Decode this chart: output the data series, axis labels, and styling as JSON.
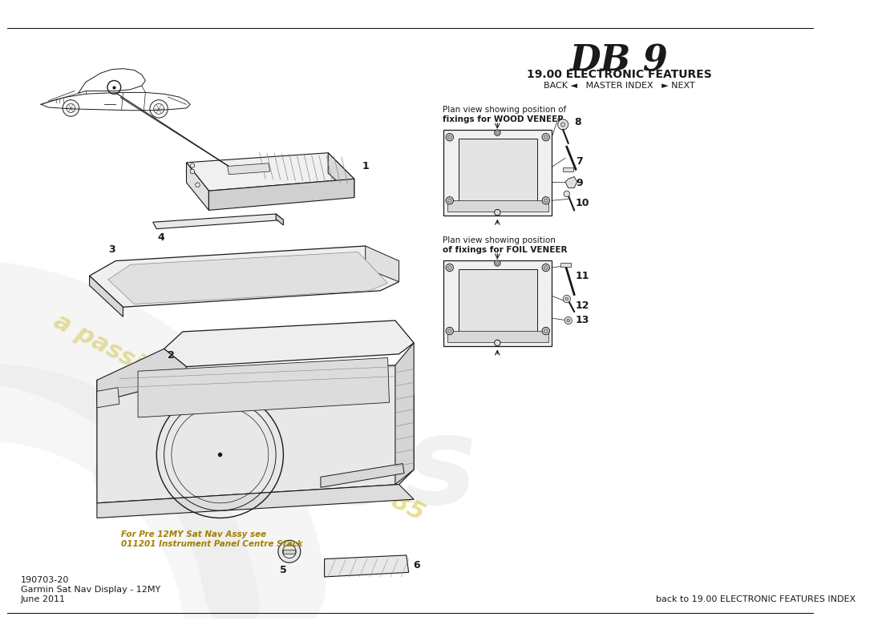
{
  "title_db9": "DB 9",
  "title_section": "19.00 ELECTRONIC FEATURES",
  "nav_text": "BACK ◄   MASTER INDEX   ► NEXT",
  "wood_veneer_label_1": "Plan view showing position of",
  "wood_veneer_label_2": "fixings for WOOD VENEER",
  "foil_veneer_label_1": "Plan view showing position",
  "foil_veneer_label_2": "of fixings for FOIL VENEER",
  "note_text_1": "For Pre 12MY Sat Nav Assy see",
  "note_text_2": "011201 Instrument Panel Centre Stack",
  "footer_part": "190703-20",
  "footer_name": "Garmin Sat Nav Display - 12MY",
  "footer_date": "June 2011",
  "footer_back": "back to 19.00 ELECTRONIC FEATURES INDEX",
  "bg_color": "#ffffff",
  "line_color": "#1a1a1a",
  "gray_line": "#888888",
  "light_gray": "#cccccc",
  "wm_gray": "#c8c8c8",
  "wm_yellow": "#d4c840",
  "note_color": "#a08000"
}
